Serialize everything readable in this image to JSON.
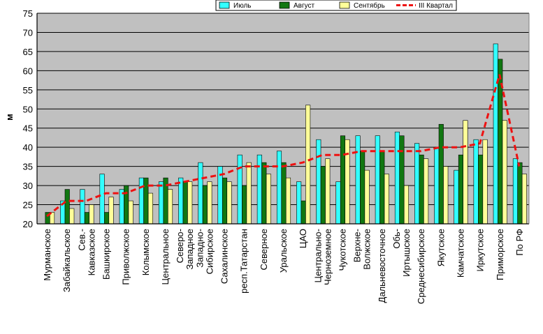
{
  "chart_data": {
    "type": "bar",
    "ylabel": "м",
    "ylim": [
      20,
      75
    ],
    "yticks": [
      20,
      25,
      30,
      35,
      40,
      45,
      50,
      55,
      60,
      65,
      70,
      75
    ],
    "grid": true,
    "legend_position": "top-right",
    "categories": [
      "Мурманское",
      "Забайкальское",
      "Сев.-Кавказское",
      "Башкирское",
      "Приволжское",
      "Колымское",
      "Центральное",
      "Северо-Западное",
      "Западно-Сибирское",
      "Сахалинское",
      "респ.Татарстан",
      "Северное",
      "Уральское",
      "ЦАО",
      "Центрально-Черноземное",
      "Чукотское",
      "Верхне-Волжское",
      "Дальневосточное",
      "Обь-Иртышское",
      "Среднесибирское",
      "Якутское",
      "Камчатское",
      "Иркутское",
      "Приморское",
      "По РФ"
    ],
    "category_lines": [
      [
        "Мурманское"
      ],
      [
        "Забайкальское"
      ],
      [
        "Сев.-",
        "Кавказское"
      ],
      [
        "Башкирское"
      ],
      [
        "Приволжское"
      ],
      [
        "Колымское"
      ],
      [
        "Центральное"
      ],
      [
        "Северо-",
        "Западное"
      ],
      [
        "Западно-",
        "Сибирское"
      ],
      [
        "Сахалинское"
      ],
      [
        "респ.Татарстан"
      ],
      [
        "Северное"
      ],
      [
        "Уральское"
      ],
      [
        "ЦАО"
      ],
      [
        "Центрально-",
        "Черноземное"
      ],
      [
        "Чукотское"
      ],
      [
        "Верхне-",
        "Волжское"
      ],
      [
        "Дальневосточное"
      ],
      [
        "Обь-",
        "Иртышское"
      ],
      [
        "Среднесибирское"
      ],
      [
        "Якутское"
      ],
      [
        "Камчатское"
      ],
      [
        "Иркутское"
      ],
      [
        "Приморское"
      ],
      [
        "По РФ"
      ]
    ],
    "series": [
      {
        "name": "Июль",
        "type": "bar",
        "color": "#33ffff",
        "values": [
          20,
          26,
          29,
          33,
          29,
          32,
          31,
          32,
          36,
          35,
          38,
          38,
          39,
          31,
          42,
          31,
          43,
          43,
          44,
          41,
          40,
          34,
          42,
          67,
          37
        ]
      },
      {
        "name": "Август",
        "type": "bar",
        "color": "#117711",
        "values": [
          23,
          29,
          23,
          23,
          30,
          32,
          32,
          31,
          30,
          32,
          30,
          36,
          36,
          26,
          35,
          43,
          39,
          39,
          43,
          38,
          46,
          38,
          38,
          63,
          36
        ]
      },
      {
        "name": "Сентябрь",
        "type": "bar",
        "color": "#ffff99",
        "values": [
          23,
          24,
          25,
          27,
          26,
          28,
          29,
          31,
          31,
          31,
          36,
          33,
          32,
          51,
          37,
          42,
          34,
          33,
          30,
          37,
          35,
          47,
          42,
          47,
          33
        ]
      },
      {
        "name": "III Квартал",
        "type": "line",
        "color": "#ee1111",
        "values": [
          22,
          26,
          26,
          28,
          28,
          30,
          30,
          31,
          32,
          33,
          35,
          35,
          35,
          36,
          38,
          38,
          39,
          39,
          39,
          39,
          40,
          40,
          41,
          59,
          35
        ]
      }
    ]
  }
}
